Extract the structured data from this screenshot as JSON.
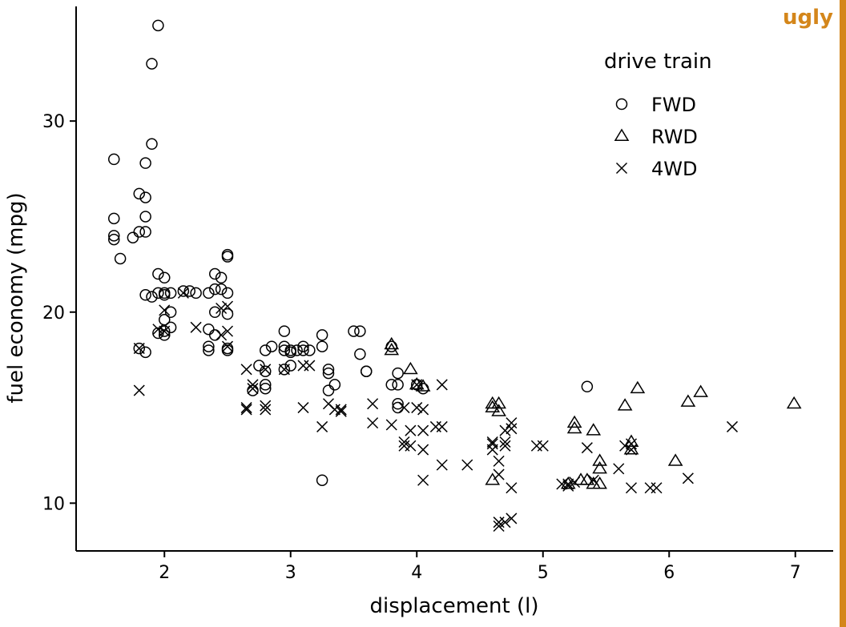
{
  "badge": {
    "text": "ugly",
    "color": "#d4861a"
  },
  "chart_data": {
    "type": "scatter",
    "xlabel": "displacement (l)",
    "ylabel": "fuel economy (mpg)",
    "xlim": [
      1.3,
      7.3
    ],
    "ylim": [
      7.5,
      36.0
    ],
    "xticks": [
      2,
      3,
      4,
      5,
      6,
      7
    ],
    "yticks": [
      10,
      20,
      30
    ],
    "grid": false,
    "legend": {
      "title": "drive train",
      "placement": "top-right",
      "entries": [
        {
          "label": "FWD",
          "shape": "circle"
        },
        {
          "label": "RWD",
          "shape": "triangle"
        },
        {
          "label": "4WD",
          "shape": "cross"
        }
      ]
    },
    "series": [
      {
        "name": "FWD",
        "shape": "circle",
        "points": [
          [
            1.95,
            35
          ],
          [
            1.9,
            33
          ],
          [
            1.9,
            28.8
          ],
          [
            1.6,
            28
          ],
          [
            1.85,
            27.8
          ],
          [
            1.8,
            26.2
          ],
          [
            1.85,
            26
          ],
          [
            1.6,
            24.9
          ],
          [
            1.85,
            25
          ],
          [
            1.8,
            24.2
          ],
          [
            1.85,
            24.2
          ],
          [
            1.6,
            24
          ],
          [
            1.6,
            23.8
          ],
          [
            1.75,
            23.9
          ],
          [
            1.65,
            22.8
          ],
          [
            1.95,
            22
          ],
          [
            2.0,
            21.8
          ],
          [
            2.5,
            23
          ],
          [
            2.5,
            22.9
          ],
          [
            2.4,
            22
          ],
          [
            2.45,
            21.8
          ],
          [
            2.4,
            21.2
          ],
          [
            2.45,
            21.2
          ],
          [
            2.5,
            21
          ],
          [
            2.35,
            21
          ],
          [
            2.2,
            21.1
          ],
          [
            2.15,
            21.1
          ],
          [
            2.25,
            21
          ],
          [
            1.85,
            20.9
          ],
          [
            1.9,
            20.8
          ],
          [
            1.95,
            21
          ],
          [
            2.0,
            21
          ],
          [
            2.0,
            20.9
          ],
          [
            2.05,
            21
          ],
          [
            2.05,
            20
          ],
          [
            2.0,
            19.6
          ],
          [
            2.05,
            19.2
          ],
          [
            2.0,
            19
          ],
          [
            1.95,
            18.9
          ],
          [
            2.0,
            18.8
          ],
          [
            1.8,
            18.1
          ],
          [
            1.85,
            17.9
          ],
          [
            2.4,
            20
          ],
          [
            2.5,
            19.9
          ],
          [
            2.35,
            19.1
          ],
          [
            2.4,
            18.8
          ],
          [
            2.35,
            18.2
          ],
          [
            2.35,
            18
          ],
          [
            2.5,
            18
          ],
          [
            2.5,
            18.1
          ],
          [
            2.95,
            19
          ],
          [
            2.95,
            18.2
          ],
          [
            2.95,
            18
          ],
          [
            3.0,
            18
          ],
          [
            3.0,
            17.9
          ],
          [
            3.05,
            18
          ],
          [
            3.1,
            18.2
          ],
          [
            3.1,
            18
          ],
          [
            3.15,
            18
          ],
          [
            2.8,
            18
          ],
          [
            2.85,
            18.2
          ],
          [
            2.95,
            17
          ],
          [
            3.0,
            17.2
          ],
          [
            3.25,
            18.8
          ],
          [
            3.25,
            18.2
          ],
          [
            3.3,
            17
          ],
          [
            3.3,
            16.8
          ],
          [
            3.35,
            16.2
          ],
          [
            3.3,
            15.9
          ],
          [
            2.75,
            17.2
          ],
          [
            2.8,
            16.9
          ],
          [
            2.7,
            15.9
          ],
          [
            2.8,
            16.2
          ],
          [
            2.8,
            16
          ],
          [
            3.5,
            19
          ],
          [
            3.55,
            19
          ],
          [
            3.55,
            17.8
          ],
          [
            3.6,
            16.9
          ],
          [
            3.6,
            16.9
          ],
          [
            3.8,
            16.2
          ],
          [
            3.85,
            16.8
          ],
          [
            3.85,
            16.2
          ],
          [
            3.85,
            15.2
          ],
          [
            3.85,
            15
          ],
          [
            3.8,
            18.2
          ],
          [
            4.0,
            16.2
          ],
          [
            4.05,
            16
          ],
          [
            3.25,
            11.2
          ],
          [
            5.35,
            16.1
          ]
        ]
      },
      {
        "name": "RWD",
        "shape": "triangle",
        "points": [
          [
            3.8,
            18.3
          ],
          [
            3.8,
            18
          ],
          [
            3.95,
            17
          ],
          [
            4.0,
            16.2
          ],
          [
            4.05,
            16.1
          ],
          [
            4.6,
            15.2
          ],
          [
            4.65,
            15.2
          ],
          [
            4.65,
            14.8
          ],
          [
            4.6,
            15
          ],
          [
            4.6,
            11.2
          ],
          [
            5.25,
            14.2
          ],
          [
            5.25,
            13.9
          ],
          [
            5.4,
            13.8
          ],
          [
            5.2,
            11
          ],
          [
            5.3,
            11.2
          ],
          [
            5.35,
            11.2
          ],
          [
            5.45,
            12.2
          ],
          [
            5.45,
            11.8
          ],
          [
            5.4,
            11
          ],
          [
            5.45,
            11
          ],
          [
            5.65,
            15.1
          ],
          [
            5.75,
            16
          ],
          [
            5.7,
            13.2
          ],
          [
            5.7,
            12.8
          ],
          [
            6.05,
            12.2
          ],
          [
            6.15,
            15.3
          ],
          [
            6.25,
            15.8
          ],
          [
            6.99,
            15.2
          ]
        ]
      },
      {
        "name": "4WD",
        "shape": "cross",
        "points": [
          [
            1.8,
            15.9
          ],
          [
            1.8,
            18.1
          ],
          [
            1.95,
            19.1
          ],
          [
            2.0,
            20.1
          ],
          [
            2.0,
            19
          ],
          [
            2.25,
            19.2
          ],
          [
            2.45,
            20.2
          ],
          [
            2.5,
            20.3
          ],
          [
            2.5,
            19
          ],
          [
            2.45,
            18.8
          ],
          [
            2.5,
            18.2
          ],
          [
            2.15,
            21
          ],
          [
            2.65,
            17
          ],
          [
            2.65,
            15
          ],
          [
            2.65,
            14.9
          ],
          [
            2.7,
            16.2
          ],
          [
            2.7,
            16
          ],
          [
            2.8,
            17
          ],
          [
            2.8,
            15.1
          ],
          [
            2.8,
            14.9
          ],
          [
            2.95,
            17
          ],
          [
            3.1,
            17.2
          ],
          [
            3.15,
            17.2
          ],
          [
            3.1,
            15
          ],
          [
            3.25,
            14
          ],
          [
            3.3,
            15.2
          ],
          [
            3.35,
            14.9
          ],
          [
            3.4,
            14.8
          ],
          [
            3.4,
            14.9
          ],
          [
            3.65,
            15.2
          ],
          [
            3.65,
            14.2
          ],
          [
            3.8,
            14.1
          ],
          [
            3.9,
            15
          ],
          [
            3.9,
            13.2
          ],
          [
            3.9,
            13
          ],
          [
            3.95,
            13.8
          ],
          [
            3.95,
            13
          ],
          [
            4.0,
            16.2
          ],
          [
            4.0,
            15
          ],
          [
            4.05,
            14.9
          ],
          [
            4.05,
            13.8
          ],
          [
            4.05,
            12.8
          ],
          [
            4.05,
            11.2
          ],
          [
            4.15,
            14
          ],
          [
            4.2,
            14
          ],
          [
            4.2,
            16.2
          ],
          [
            4.2,
            12
          ],
          [
            4.4,
            12
          ],
          [
            4.6,
            13.2
          ],
          [
            4.6,
            13.1
          ],
          [
            4.6,
            12.8
          ],
          [
            4.65,
            12.2
          ],
          [
            4.65,
            11.5
          ],
          [
            4.65,
            9
          ],
          [
            4.65,
            8.8
          ],
          [
            4.7,
            9
          ],
          [
            4.75,
            9.2
          ],
          [
            4.7,
            13.2
          ],
          [
            4.7,
            13
          ],
          [
            4.7,
            13.8
          ],
          [
            4.75,
            14.2
          ],
          [
            4.75,
            13.9
          ],
          [
            4.75,
            10.8
          ],
          [
            4.95,
            13
          ],
          [
            5.0,
            13
          ],
          [
            5.15,
            11
          ],
          [
            5.2,
            11
          ],
          [
            5.2,
            10.9
          ],
          [
            5.25,
            11.1
          ],
          [
            5.35,
            12.9
          ],
          [
            5.4,
            11.2
          ],
          [
            5.6,
            11.8
          ],
          [
            5.65,
            13
          ],
          [
            5.7,
            13.1
          ],
          [
            5.7,
            12.8
          ],
          [
            5.7,
            10.8
          ],
          [
            5.85,
            10.8
          ],
          [
            5.9,
            10.8
          ],
          [
            6.15,
            11.3
          ],
          [
            6.5,
            14
          ]
        ]
      }
    ]
  }
}
